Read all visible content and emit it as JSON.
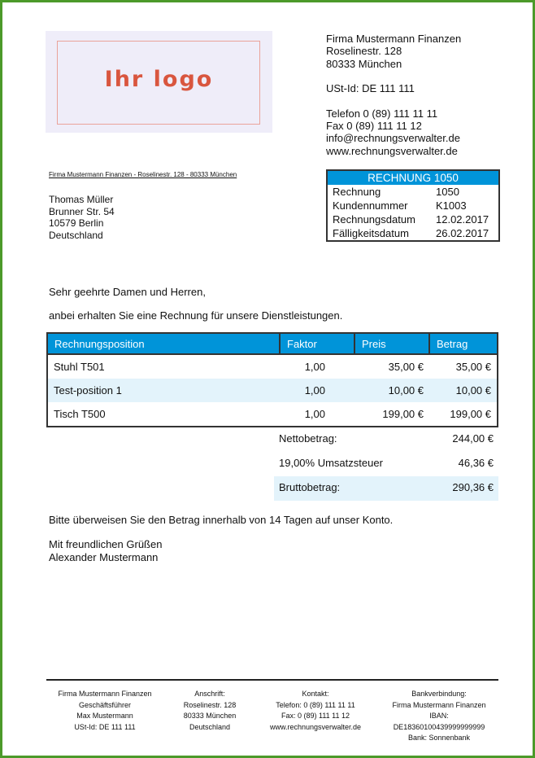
{
  "logo": {
    "text": "Ihr logo"
  },
  "company": {
    "name": "Firma Mustermann Finanzen",
    "street": "Roselinestr. 128",
    "city": "80333 München",
    "vat": "USt-Id: DE 111 111",
    "phone": "Telefon 0 (89) 111 11 11",
    "fax": "Fax 0 (89) 111 11 12",
    "email": "info@rechnungsverwalter.de",
    "web": "www.rechnungsverwalter.de"
  },
  "sender_line": "Firma Mustermann Finanzen - Roselinestr. 128 - 80333 München",
  "recipient": {
    "name": "Thomas Müller",
    "street": "Brunner Str. 54",
    "city": "10579 Berlin",
    "country": "Deutschland"
  },
  "invoice": {
    "title": "RECHNUNG 1050",
    "rows": [
      {
        "k": "Rechnung",
        "v": "1050"
      },
      {
        "k": "Kundennummer",
        "v": "K1003"
      },
      {
        "k": "Rechnungsdatum",
        "v": "12.02.2017"
      },
      {
        "k": "Fälligkeitsdatum",
        "v": "26.02.2017"
      }
    ]
  },
  "greeting": "Sehr geehrte Damen und Herren,",
  "intro": "anbei erhalten Sie eine Rechnung für unsere Dienstleistungen.",
  "table": {
    "headers": [
      "Rechnungsposition",
      "Faktor",
      "Preis",
      "Betrag"
    ],
    "rows": [
      [
        "Stuhl T501",
        "1,00",
        "35,00 €",
        "35,00 €"
      ],
      [
        "Test-position 1",
        "1,00",
        "10,00 €",
        "10,00 €"
      ],
      [
        "Tisch T500",
        "1,00",
        "199,00 €",
        "199,00 €"
      ]
    ]
  },
  "totals": [
    {
      "label": "Nettobetrag:",
      "value": "244,00 €"
    },
    {
      "label": "19,00% Umsatzsteuer",
      "value": "46,36 €"
    },
    {
      "label": "Bruttobetrag:",
      "value": "290,36 €"
    }
  ],
  "payment_note": "Bitte überweisen Sie den Betrag innerhalb von 14 Tagen auf unser Konto.",
  "closing": "Mit freundlichen Grüßen",
  "signature": "Alexander Mustermann",
  "footer": [
    [
      "Firma Mustermann Finanzen",
      "Geschäftsführer",
      "Max Mustermann",
      "USt-Id: DE 111 111"
    ],
    [
      "Anschrift:",
      "Roselinestr. 128",
      "80333 München",
      "Deutschland"
    ],
    [
      "Kontakt:",
      "Telefon: 0 (89) 111 11 11",
      "Fax: 0 (89) 111 11 12",
      "www.rechnungsverwalter.de"
    ],
    [
      "Bankverbindung:",
      "Firma Mustermann Finanzen",
      "IBAN:",
      "DE18360100439999999999",
      "Bank: Sonnenbank"
    ]
  ],
  "colors": {
    "accent": "#0094d9",
    "page_border": "#4c9a2a",
    "highlight": "#e3f3fb",
    "logo": "#d9563f"
  }
}
